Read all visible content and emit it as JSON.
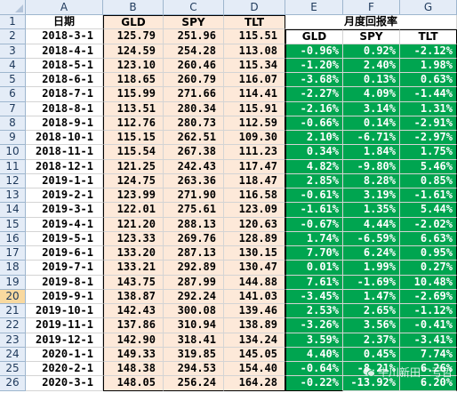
{
  "columns": [
    "A",
    "B",
    "C",
    "D",
    "E",
    "F",
    "G"
  ],
  "header_row1": {
    "date": "日期",
    "b": "GLD",
    "c": "SPY",
    "d": "TLT",
    "returns_title": "月度回报率"
  },
  "header_row2": {
    "e": "GLD",
    "f": "SPY",
    "g": "TLT"
  },
  "selected_row": 20,
  "rows": [
    {
      "n": "3",
      "date": "2018-4-1",
      "b": "124.59",
      "c": "254.28",
      "d": "113.08",
      "e": "-0.96%",
      "f": "0.92%",
      "g": "-2.12%"
    },
    {
      "n": "4",
      "date": "2018-5-1",
      "b": "123.10",
      "c": "260.46",
      "d": "115.34",
      "e": "-1.20%",
      "f": "2.40%",
      "g": "1.98%"
    },
    {
      "n": "5",
      "date": "2018-6-1",
      "b": "118.65",
      "c": "260.79",
      "d": "116.07",
      "e": "-3.68%",
      "f": "0.13%",
      "g": "0.63%"
    },
    {
      "n": "6",
      "date": "2018-7-1",
      "b": "115.99",
      "c": "271.66",
      "d": "114.41",
      "e": "-2.27%",
      "f": "4.09%",
      "g": "-1.44%"
    },
    {
      "n": "7",
      "date": "2018-8-1",
      "b": "113.51",
      "c": "280.34",
      "d": "115.91",
      "e": "-2.16%",
      "f": "3.14%",
      "g": "1.31%"
    },
    {
      "n": "8",
      "date": "2018-9-1",
      "b": "112.76",
      "c": "280.73",
      "d": "112.59",
      "e": "-0.66%",
      "f": "0.14%",
      "g": "-2.91%"
    },
    {
      "n": "9",
      "date": "2018-10-1",
      "b": "115.15",
      "c": "262.51",
      "d": "109.30",
      "e": "2.10%",
      "f": "-6.71%",
      "g": "-2.97%"
    },
    {
      "n": "10",
      "date": "2018-11-1",
      "b": "115.54",
      "c": "267.38",
      "d": "111.23",
      "e": "0.34%",
      "f": "1.84%",
      "g": "1.75%"
    },
    {
      "n": "11",
      "date": "2018-12-1",
      "b": "121.25",
      "c": "242.43",
      "d": "117.47",
      "e": "4.82%",
      "f": "-9.80%",
      "g": "5.46%"
    },
    {
      "n": "12",
      "date": "2019-1-1",
      "b": "124.75",
      "c": "263.36",
      "d": "118.47",
      "e": "2.85%",
      "f": "8.28%",
      "g": "0.85%"
    },
    {
      "n": "13",
      "date": "2019-2-1",
      "b": "123.99",
      "c": "271.90",
      "d": "116.58",
      "e": "-0.61%",
      "f": "3.19%",
      "g": "-1.61%"
    },
    {
      "n": "14",
      "date": "2019-3-1",
      "b": "122.01",
      "c": "275.61",
      "d": "123.09",
      "e": "-1.61%",
      "f": "1.35%",
      "g": "5.44%"
    },
    {
      "n": "15",
      "date": "2019-4-1",
      "b": "121.20",
      "c": "288.13",
      "d": "120.63",
      "e": "-0.67%",
      "f": "4.44%",
      "g": "-2.02%"
    },
    {
      "n": "16",
      "date": "2019-5-1",
      "b": "123.33",
      "c": "269.76",
      "d": "128.89",
      "e": "1.74%",
      "f": "-6.59%",
      "g": "6.63%"
    },
    {
      "n": "17",
      "date": "2019-6-1",
      "b": "133.20",
      "c": "287.13",
      "d": "130.15",
      "e": "7.70%",
      "f": "6.24%",
      "g": "0.95%"
    },
    {
      "n": "18",
      "date": "2019-7-1",
      "b": "133.21",
      "c": "292.89",
      "d": "130.47",
      "e": "0.01%",
      "f": "1.99%",
      "g": "0.27%"
    },
    {
      "n": "19",
      "date": "2019-8-1",
      "b": "143.75",
      "c": "287.99",
      "d": "144.88",
      "e": "7.61%",
      "f": "-1.69%",
      "g": "10.48%"
    },
    {
      "n": "20",
      "date": "2019-9-1",
      "b": "138.87",
      "c": "292.24",
      "d": "141.03",
      "e": "-3.45%",
      "f": "1.47%",
      "g": "-2.69%"
    },
    {
      "n": "21",
      "date": "2019-10-1",
      "b": "142.43",
      "c": "300.08",
      "d": "139.46",
      "e": "2.53%",
      "f": "2.65%",
      "g": "-1.12%"
    },
    {
      "n": "22",
      "date": "2019-11-1",
      "b": "137.86",
      "c": "310.94",
      "d": "138.89",
      "e": "-3.26%",
      "f": "3.56%",
      "g": "-0.41%"
    },
    {
      "n": "23",
      "date": "2019-12-1",
      "b": "142.90",
      "c": "318.41",
      "d": "134.24",
      "e": "3.59%",
      "f": "2.37%",
      "g": "-3.41%"
    },
    {
      "n": "24",
      "date": "2020-1-1",
      "b": "149.33",
      "c": "319.85",
      "d": "145.05",
      "e": "4.40%",
      "f": "0.45%",
      "g": "7.74%"
    },
    {
      "n": "25",
      "date": "2020-2-1",
      "b": "148.38",
      "c": "294.53",
      "d": "154.40",
      "e": "-0.64%",
      "f": "-8.21%",
      "g": "6.26%"
    },
    {
      "n": "26",
      "date": "2020-3-1",
      "b": "148.05",
      "c": "256.24",
      "d": "164.28",
      "e": "-0.22%",
      "f": "-13.92%",
      "g": "6.20%"
    }
  ],
  "row2": {
    "n": "2",
    "date": "2018-3-1",
    "b": "125.79",
    "c": "251.96",
    "d": "115.51"
  },
  "watermark": "牛川新田二亏哲"
}
